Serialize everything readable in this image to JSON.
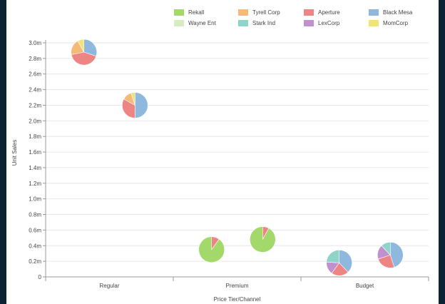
{
  "chart_data": {
    "type": "scatter",
    "subtype": "pie-scatter",
    "xlabel": "Price Tier/Channel",
    "ylabel": "Unit Sales",
    "categories": [
      "Regular",
      "Premium",
      "Budget"
    ],
    "ylim": [
      0,
      3.0
    ],
    "yticks": [
      0,
      0.2,
      0.4,
      0.6,
      0.8,
      1.0,
      1.2,
      1.4,
      1.6,
      1.8,
      2.0,
      2.2,
      2.4,
      2.6,
      2.8,
      3.0
    ],
    "ytick_labels": [
      "0",
      "0.2m",
      "0.4m",
      "0.6m",
      "0.8m",
      "1.0m",
      "1.2m",
      "1.4m",
      "1.6m",
      "1.8m",
      "2.0m",
      "2.2m",
      "2.4m",
      "2.6m",
      "2.8m",
      "3.0m"
    ],
    "grid": true,
    "legend_position": "top-right",
    "series": [
      {
        "name": "Rekall",
        "color": "#a3d86b"
      },
      {
        "name": "Wayne Ent",
        "color": "#d5edc0"
      },
      {
        "name": "Tyrell Corp",
        "color": "#f5b97a"
      },
      {
        "name": "Stark Ind",
        "color": "#8fd4c8"
      },
      {
        "name": "Aperture",
        "color": "#ee8585"
      },
      {
        "name": "LexCorp",
        "color": "#c091cc"
      },
      {
        "name": "Black Mesa",
        "color": "#8fb8de"
      },
      {
        "name": "MomCorp",
        "color": "#f3e17c"
      }
    ],
    "points": [
      {
        "category": "Regular",
        "x": 0.3,
        "y": 2.88,
        "slices": [
          {
            "series": "Black Mesa",
            "value": 0.3
          },
          {
            "series": "Aperture",
            "value": 0.42
          },
          {
            "series": "Tyrell Corp",
            "value": 0.2
          },
          {
            "series": "MomCorp",
            "value": 0.08
          }
        ]
      },
      {
        "category": "Regular",
        "x": 0.7,
        "y": 2.2,
        "slices": [
          {
            "series": "Black Mesa",
            "value": 0.5
          },
          {
            "series": "Aperture",
            "value": 0.33
          },
          {
            "series": "Tyrell Corp",
            "value": 0.12
          },
          {
            "series": "MomCorp",
            "value": 0.05
          }
        ]
      },
      {
        "category": "Premium",
        "x": 1.3,
        "y": 0.35,
        "slices": [
          {
            "series": "Aperture",
            "value": 0.1
          },
          {
            "series": "Rekall",
            "value": 0.9
          }
        ]
      },
      {
        "category": "Premium",
        "x": 1.7,
        "y": 0.48,
        "slices": [
          {
            "series": "Aperture",
            "value": 0.08
          },
          {
            "series": "Rekall",
            "value": 0.92
          }
        ]
      },
      {
        "category": "Budget",
        "x": 2.3,
        "y": 0.18,
        "slices": [
          {
            "series": "Black Mesa",
            "value": 0.38
          },
          {
            "series": "Aperture",
            "value": 0.22
          },
          {
            "series": "LexCorp",
            "value": 0.16
          },
          {
            "series": "Stark Ind",
            "value": 0.24
          }
        ]
      },
      {
        "category": "Budget",
        "x": 2.7,
        "y": 0.28,
        "slices": [
          {
            "series": "Black Mesa",
            "value": 0.45
          },
          {
            "series": "Aperture",
            "value": 0.25
          },
          {
            "series": "LexCorp",
            "value": 0.18
          },
          {
            "series": "Stark Ind",
            "value": 0.12
          }
        ]
      }
    ]
  }
}
